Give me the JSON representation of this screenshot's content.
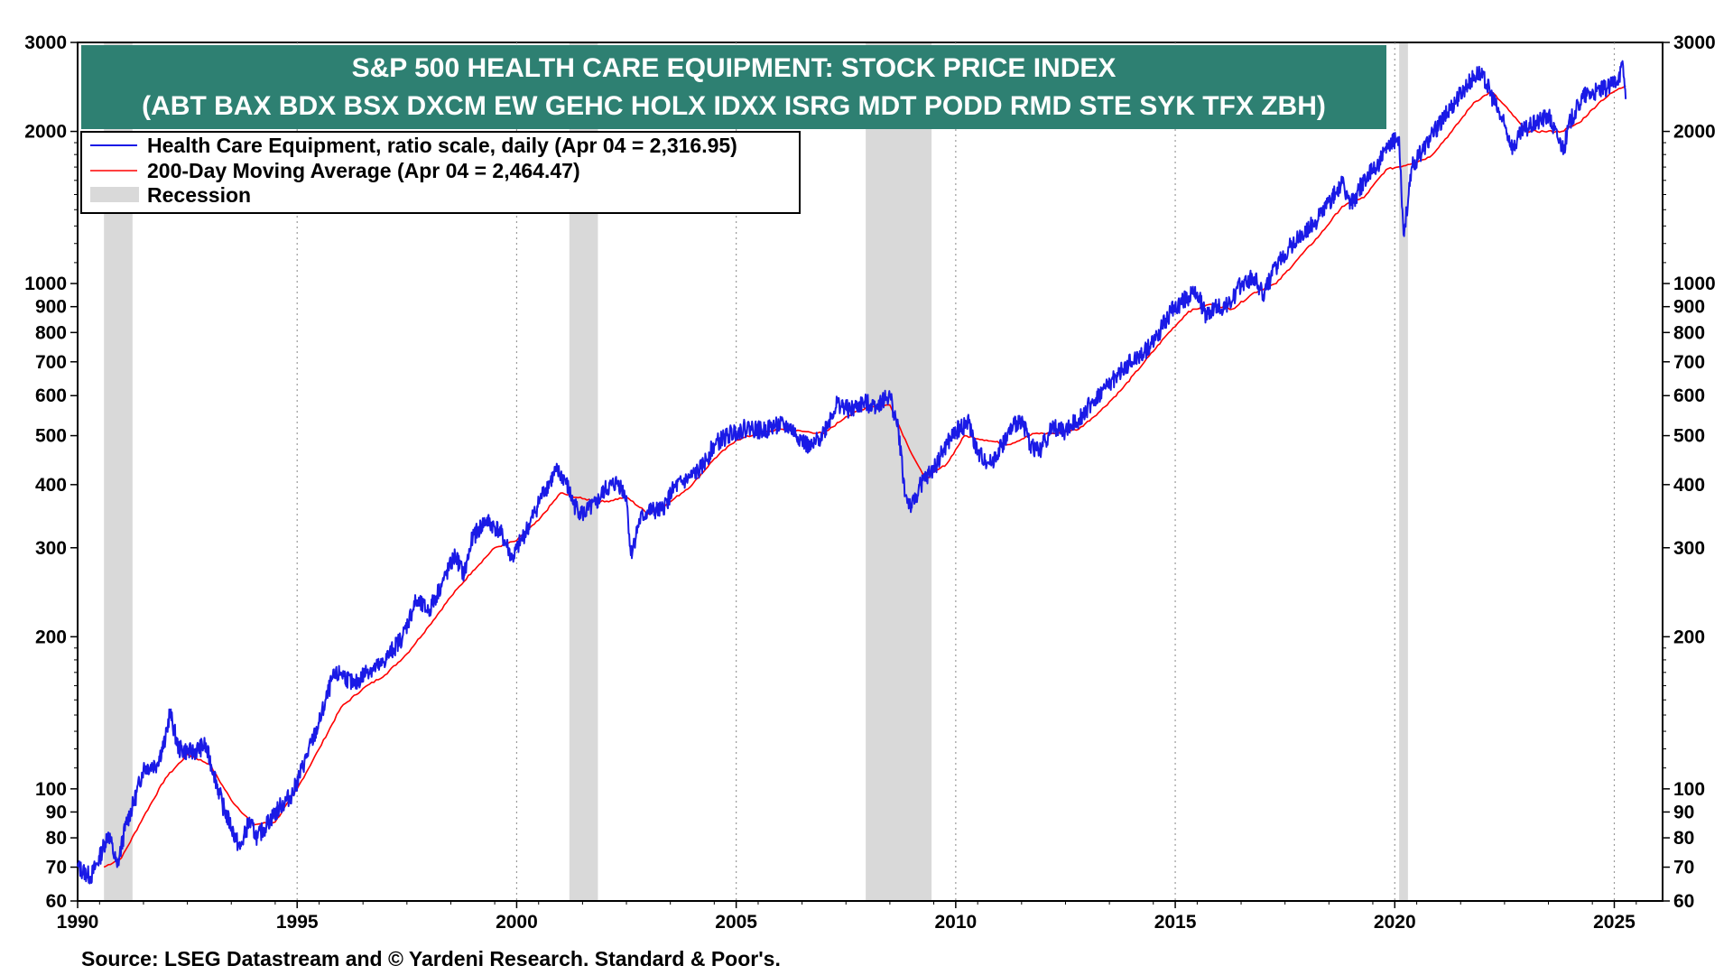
{
  "chart_data": {
    "type": "line",
    "title": "S&P 500 HEALTH CARE EQUIPMENT: STOCK PRICE INDEX",
    "subtitle": "(ABT BAX BDX BSX DXCM EW GEHC HOLX IDXX ISRG MDT PODD RMD STE SYK TFX ZBH)",
    "title_bg": "#2e8072",
    "scale": "log",
    "xlim": [
      1990,
      2026.1
    ],
    "ylim": [
      60,
      3000
    ],
    "x_ticks": [
      "1990",
      "1995",
      "2000",
      "2005",
      "2010",
      "2015",
      "2020",
      "2025"
    ],
    "y_ticks_major": [
      "60",
      "70",
      "80",
      "90",
      "100",
      "200",
      "300",
      "400",
      "500",
      "600",
      "700",
      "800",
      "900",
      "1000",
      "2000",
      "3000"
    ],
    "grid": "vertical dotted at year ticks",
    "legend_position": "top-left",
    "legend": [
      "Health Care Equipment, ratio scale, daily (Apr 04 = 2,316.95)",
      "200-Day Moving Average (Apr 04 = 2,464.47)",
      "Recession"
    ],
    "recessions": [
      [
        1990.6,
        1991.25
      ],
      [
        2001.2,
        2001.85
      ],
      [
        2007.95,
        2009.45
      ],
      [
        2020.1,
        2020.3
      ]
    ],
    "series": [
      {
        "name": "Health Care Equipment, ratio scale, daily (Apr 04 = 2,316.95)",
        "color": "#1a1ae6",
        "points": [
          [
            1990.0,
            70
          ],
          [
            1990.3,
            67
          ],
          [
            1990.5,
            73
          ],
          [
            1990.7,
            82
          ],
          [
            1990.9,
            70
          ],
          [
            1991.1,
            85
          ],
          [
            1991.3,
            95
          ],
          [
            1991.5,
            110
          ],
          [
            1991.8,
            112
          ],
          [
            1992.0,
            125
          ],
          [
            1992.1,
            142
          ],
          [
            1992.3,
            120
          ],
          [
            1992.6,
            118
          ],
          [
            1992.9,
            122
          ],
          [
            1993.1,
            108
          ],
          [
            1993.3,
            93
          ],
          [
            1993.5,
            84
          ],
          [
            1993.7,
            76
          ],
          [
            1993.9,
            86
          ],
          [
            1994.1,
            80
          ],
          [
            1994.3,
            85
          ],
          [
            1994.6,
            92
          ],
          [
            1994.9,
            98
          ],
          [
            1995.2,
            115
          ],
          [
            1995.5,
            135
          ],
          [
            1995.8,
            165
          ],
          [
            1996.0,
            170
          ],
          [
            1996.3,
            160
          ],
          [
            1996.6,
            172
          ],
          [
            1996.9,
            175
          ],
          [
            1997.1,
            185
          ],
          [
            1997.4,
            200
          ],
          [
            1997.7,
            235
          ],
          [
            1998.0,
            225
          ],
          [
            1998.3,
            255
          ],
          [
            1998.6,
            290
          ],
          [
            1998.8,
            265
          ],
          [
            1999.0,
            315
          ],
          [
            1999.3,
            340
          ],
          [
            1999.6,
            325
          ],
          [
            1999.8,
            300
          ],
          [
            1999.9,
            285
          ],
          [
            2000.1,
            310
          ],
          [
            2000.3,
            335
          ],
          [
            2000.6,
            385
          ],
          [
            2000.9,
            425
          ],
          [
            2001.1,
            410
          ],
          [
            2001.3,
            365
          ],
          [
            2001.5,
            350
          ],
          [
            2001.8,
            365
          ],
          [
            2002.0,
            390
          ],
          [
            2002.3,
            405
          ],
          [
            2002.5,
            380
          ],
          [
            2002.6,
            290
          ],
          [
            2002.8,
            340
          ],
          [
            2003.0,
            355
          ],
          [
            2003.3,
            355
          ],
          [
            2003.6,
            395
          ],
          [
            2003.9,
            410
          ],
          [
            2004.2,
            430
          ],
          [
            2004.5,
            480
          ],
          [
            2004.8,
            500
          ],
          [
            2005.0,
            510
          ],
          [
            2005.3,
            520
          ],
          [
            2005.6,
            510
          ],
          [
            2005.9,
            525
          ],
          [
            2006.2,
            520
          ],
          [
            2006.5,
            490
          ],
          [
            2006.7,
            470
          ],
          [
            2007.0,
            510
          ],
          [
            2007.3,
            580
          ],
          [
            2007.6,
            560
          ],
          [
            2007.9,
            580
          ],
          [
            2008.2,
            575
          ],
          [
            2008.5,
            600
          ],
          [
            2008.7,
            510
          ],
          [
            2008.85,
            380
          ],
          [
            2009.0,
            360
          ],
          [
            2009.2,
            400
          ],
          [
            2009.5,
            430
          ],
          [
            2009.8,
            480
          ],
          [
            2010.0,
            510
          ],
          [
            2010.3,
            530
          ],
          [
            2010.5,
            460
          ],
          [
            2010.8,
            440
          ],
          [
            2011.0,
            470
          ],
          [
            2011.3,
            520
          ],
          [
            2011.5,
            540
          ],
          [
            2011.7,
            480
          ],
          [
            2011.9,
            465
          ],
          [
            2012.2,
            520
          ],
          [
            2012.5,
            510
          ],
          [
            2012.8,
            540
          ],
          [
            2013.1,
            580
          ],
          [
            2013.4,
            620
          ],
          [
            2013.7,
            660
          ],
          [
            2014.0,
            700
          ],
          [
            2014.3,
            730
          ],
          [
            2014.6,
            790
          ],
          [
            2014.9,
            880
          ],
          [
            2015.2,
            930
          ],
          [
            2015.5,
            960
          ],
          [
            2015.7,
            860
          ],
          [
            2015.9,
            900
          ],
          [
            2016.2,
            900
          ],
          [
            2016.5,
            1000
          ],
          [
            2016.8,
            1030
          ],
          [
            2017.0,
            950
          ],
          [
            2017.3,
            1080
          ],
          [
            2017.6,
            1180
          ],
          [
            2017.9,
            1250
          ],
          [
            2018.2,
            1330
          ],
          [
            2018.5,
            1450
          ],
          [
            2018.8,
            1580
          ],
          [
            2019.0,
            1430
          ],
          [
            2019.3,
            1600
          ],
          [
            2019.6,
            1720
          ],
          [
            2019.9,
            1880
          ],
          [
            2020.1,
            1950
          ],
          [
            2020.2,
            1250
          ],
          [
            2020.4,
            1700
          ],
          [
            2020.7,
            1880
          ],
          [
            2021.0,
            2050
          ],
          [
            2021.3,
            2250
          ],
          [
            2021.6,
            2450
          ],
          [
            2021.9,
            2620
          ],
          [
            2022.1,
            2480
          ],
          [
            2022.3,
            2250
          ],
          [
            2022.5,
            2050
          ],
          [
            2022.7,
            1850
          ],
          [
            2022.9,
            2000
          ],
          [
            2023.1,
            2050
          ],
          [
            2023.3,
            2100
          ],
          [
            2023.5,
            2150
          ],
          [
            2023.7,
            1950
          ],
          [
            2023.85,
            1850
          ],
          [
            2024.0,
            2100
          ],
          [
            2024.3,
            2350
          ],
          [
            2024.6,
            2400
          ],
          [
            2024.9,
            2450
          ],
          [
            2025.1,
            2580
          ],
          [
            2025.2,
            2700
          ],
          [
            2025.26,
            2317
          ]
        ]
      },
      {
        "name": "200-Day Moving Average (Apr 04 = 2,464.47)",
        "color": "#ff0000",
        "points": [
          [
            1990.6,
            70
          ],
          [
            1991.0,
            73
          ],
          [
            1991.5,
            88
          ],
          [
            1992.0,
            105
          ],
          [
            1992.5,
            117
          ],
          [
            1993.0,
            112
          ],
          [
            1993.5,
            95
          ],
          [
            1994.0,
            85
          ],
          [
            1994.5,
            86
          ],
          [
            1995.0,
            100
          ],
          [
            1995.5,
            120
          ],
          [
            1996.0,
            145
          ],
          [
            1996.5,
            158
          ],
          [
            1997.0,
            168
          ],
          [
            1997.5,
            185
          ],
          [
            1998.0,
            210
          ],
          [
            1998.5,
            240
          ],
          [
            1999.0,
            270
          ],
          [
            1999.5,
            300
          ],
          [
            2000.0,
            310
          ],
          [
            2000.5,
            340
          ],
          [
            2001.0,
            385
          ],
          [
            2001.5,
            375
          ],
          [
            2002.0,
            370
          ],
          [
            2002.5,
            378
          ],
          [
            2003.0,
            350
          ],
          [
            2003.5,
            370
          ],
          [
            2004.0,
            400
          ],
          [
            2004.5,
            450
          ],
          [
            2005.0,
            490
          ],
          [
            2005.5,
            505
          ],
          [
            2006.0,
            515
          ],
          [
            2006.5,
            510
          ],
          [
            2007.0,
            505
          ],
          [
            2007.5,
            545
          ],
          [
            2008.0,
            570
          ],
          [
            2008.5,
            575
          ],
          [
            2008.9,
            480
          ],
          [
            2009.3,
            410
          ],
          [
            2009.8,
            440
          ],
          [
            2010.2,
            500
          ],
          [
            2010.7,
            490
          ],
          [
            2011.2,
            480
          ],
          [
            2011.8,
            505
          ],
          [
            2012.3,
            505
          ],
          [
            2012.8,
            515
          ],
          [
            2013.3,
            560
          ],
          [
            2013.8,
            620
          ],
          [
            2014.3,
            700
          ],
          [
            2014.8,
            790
          ],
          [
            2015.3,
            880
          ],
          [
            2015.8,
            910
          ],
          [
            2016.3,
            890
          ],
          [
            2016.8,
            960
          ],
          [
            2017.3,
            1000
          ],
          [
            2017.8,
            1120
          ],
          [
            2018.3,
            1250
          ],
          [
            2018.8,
            1420
          ],
          [
            2019.3,
            1480
          ],
          [
            2019.8,
            1680
          ],
          [
            2020.3,
            1720
          ],
          [
            2020.8,
            1780
          ],
          [
            2021.3,
            2000
          ],
          [
            2021.8,
            2280
          ],
          [
            2022.2,
            2400
          ],
          [
            2022.6,
            2200
          ],
          [
            2023.0,
            2000
          ],
          [
            2023.4,
            2000
          ],
          [
            2023.8,
            2000
          ],
          [
            2024.2,
            2080
          ],
          [
            2024.7,
            2300
          ],
          [
            2025.0,
            2400
          ],
          [
            2025.26,
            2464
          ]
        ]
      }
    ]
  },
  "source": "Source: LSEG Datastream and © Yardeni Research. Standard & Poor's."
}
